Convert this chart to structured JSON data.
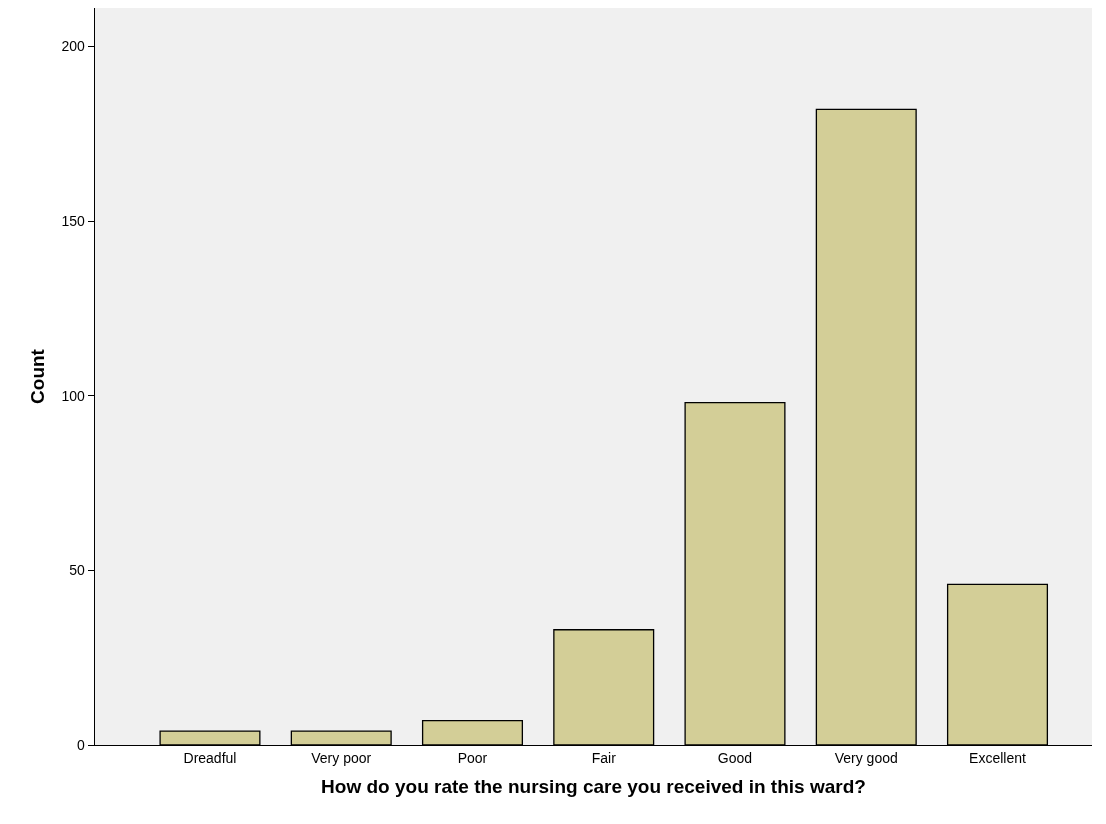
{
  "chart_data": {
    "type": "bar",
    "xlabel": "How do you rate the nursing care you received in this ward?",
    "ylabel": "Count",
    "categories": [
      "Dreadful",
      "Very poor",
      "Poor",
      "Fair",
      "Good",
      "Very good",
      "Excellent"
    ],
    "values": [
      4,
      4,
      7,
      33,
      98,
      182,
      46
    ],
    "color": "#d3ce97",
    "ylim": [
      0,
      211
    ],
    "yticks": [
      0,
      50,
      100,
      150,
      200
    ],
    "grid": false,
    "legend": false
  }
}
